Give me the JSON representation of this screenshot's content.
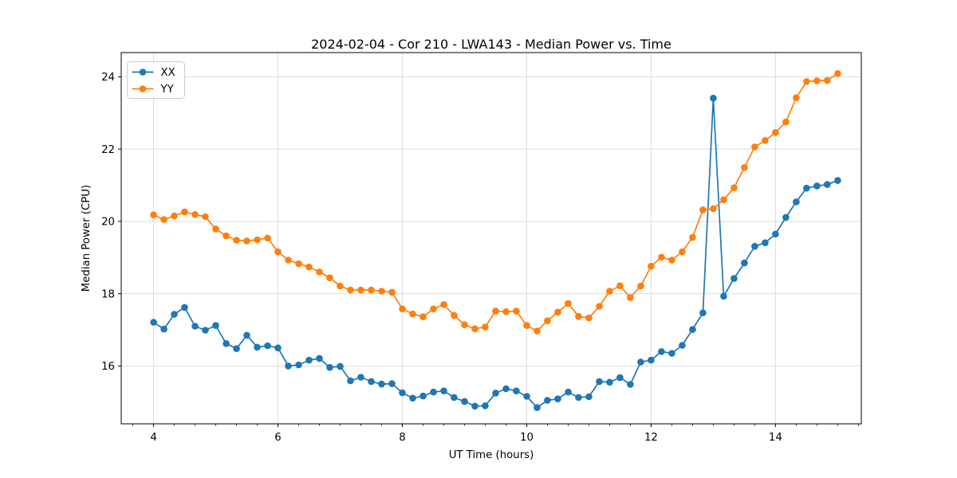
{
  "chart": {
    "background": "#ffffff",
    "grid_color": "#dcdcdc",
    "spine_color": "#000000",
    "legend": {
      "entries": [
        "XX",
        "YY"
      ],
      "position": "upper left"
    }
  },
  "chart_data": {
    "type": "line",
    "title": "2024-02-04 - Cor 210 - LWA143 - Median Power vs. Time",
    "xlabel": "UT Time (hours)",
    "ylabel": "Median Power (CPU)",
    "xlim": [
      3.48,
      15.38
    ],
    "ylim": [
      14.4,
      24.67
    ],
    "xticks": [
      4,
      6,
      8,
      10,
      12,
      14
    ],
    "yticks": [
      16,
      18,
      20,
      22,
      24
    ],
    "minor_tick_step_x": 0.3333,
    "grid": true,
    "marker": "o",
    "x": [
      4.0,
      4.167,
      4.333,
      4.5,
      4.667,
      4.833,
      5.0,
      5.167,
      5.333,
      5.5,
      5.667,
      5.833,
      6.0,
      6.167,
      6.333,
      6.5,
      6.667,
      6.833,
      7.0,
      7.167,
      7.333,
      7.5,
      7.667,
      7.833,
      8.0,
      8.167,
      8.333,
      8.5,
      8.667,
      8.833,
      9.0,
      9.167,
      9.333,
      9.5,
      9.667,
      9.833,
      10.0,
      10.167,
      10.333,
      10.5,
      10.667,
      10.833,
      11.0,
      11.167,
      11.333,
      11.5,
      11.667,
      11.833,
      12.0,
      12.167,
      12.333,
      12.5,
      12.667,
      12.833,
      13.0,
      13.167,
      13.333,
      13.5,
      13.667,
      13.833,
      14.0,
      14.167,
      14.333,
      14.5,
      14.667,
      14.833,
      15.0
    ],
    "series": [
      {
        "name": "XX",
        "color": "#1f77b4",
        "values": [
          17.21,
          17.02,
          17.43,
          17.62,
          17.1,
          16.99,
          17.12,
          16.62,
          16.48,
          16.85,
          16.52,
          16.56,
          16.5,
          16.0,
          16.03,
          16.16,
          16.21,
          15.96,
          15.99,
          15.59,
          15.69,
          15.57,
          15.5,
          15.51,
          15.26,
          15.11,
          15.17,
          15.28,
          15.31,
          15.13,
          15.02,
          14.89,
          14.9,
          15.25,
          15.37,
          15.31,
          15.16,
          14.85,
          15.05,
          15.09,
          15.28,
          15.13,
          15.15,
          15.57,
          15.55,
          15.68,
          15.49,
          16.11,
          16.16,
          16.4,
          16.35,
          16.57,
          17.01,
          17.47,
          23.41,
          17.93,
          18.42,
          18.85,
          19.31,
          19.41,
          19.65,
          20.11,
          20.54,
          20.92,
          20.98,
          21.02,
          21.13
        ]
      },
      {
        "name": "YY",
        "color": "#ff7f0e",
        "values": [
          20.18,
          20.05,
          20.15,
          20.26,
          20.19,
          20.13,
          19.79,
          19.6,
          19.48,
          19.46,
          19.49,
          19.54,
          19.16,
          18.93,
          18.83,
          18.74,
          18.6,
          18.44,
          18.21,
          18.1,
          18.1,
          18.1,
          18.07,
          18.04,
          17.58,
          17.44,
          17.36,
          17.58,
          17.7,
          17.4,
          17.14,
          17.03,
          17.08,
          17.52,
          17.5,
          17.52,
          17.12,
          16.97,
          17.25,
          17.49,
          17.73,
          17.37,
          17.33,
          17.65,
          18.07,
          18.22,
          17.89,
          18.21,
          18.76,
          19.01,
          18.93,
          19.16,
          19.56,
          20.32,
          20.35,
          20.6,
          20.93,
          21.49,
          22.06,
          22.24,
          22.46,
          22.75,
          23.42,
          23.87,
          23.89,
          23.9,
          24.09
        ]
      }
    ]
  }
}
